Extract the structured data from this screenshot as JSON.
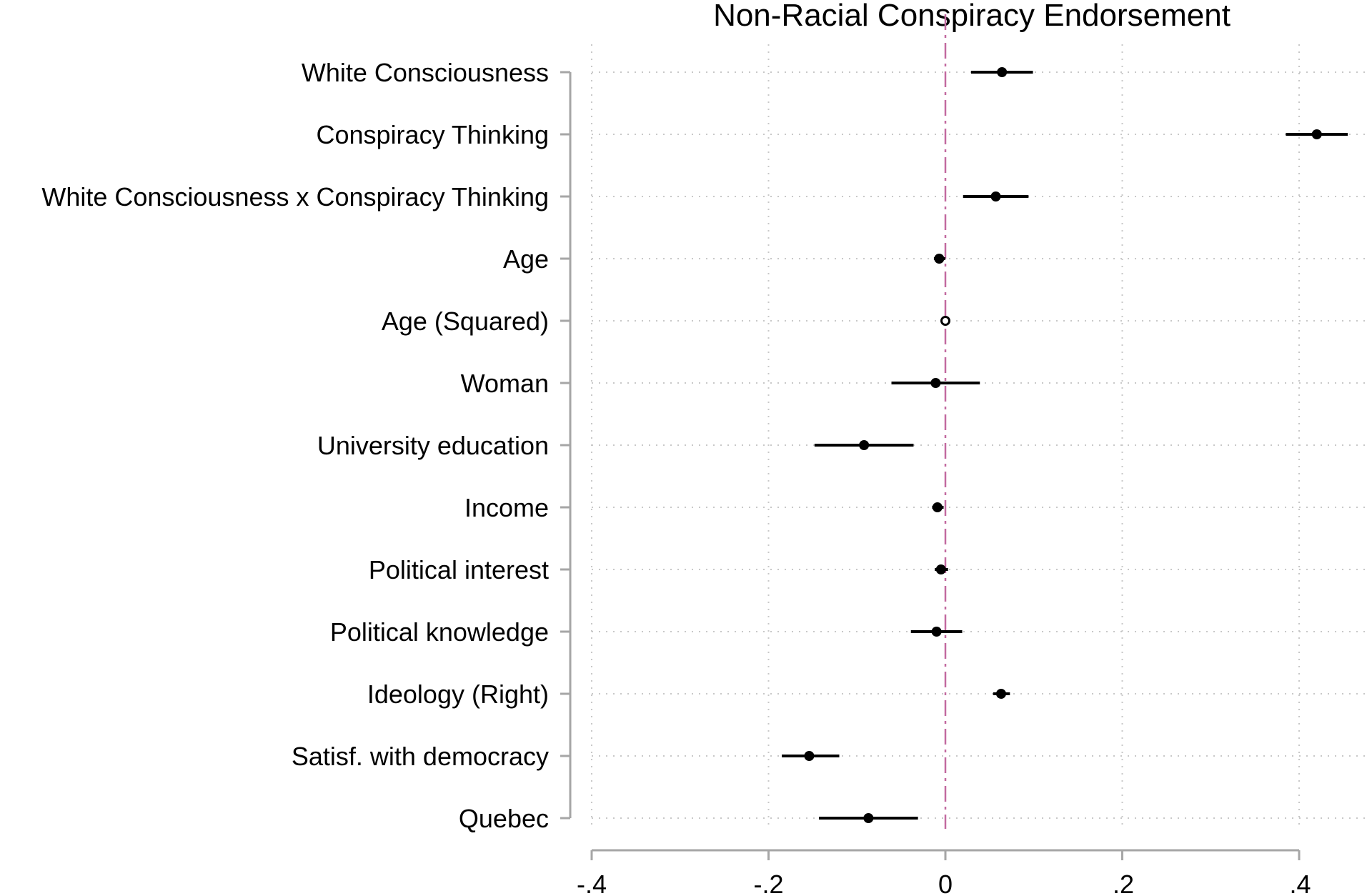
{
  "chart_data": {
    "type": "coefficient-plot",
    "title": "Non-Racial Conspiracy Endorsement",
    "xlim": [
      -0.4,
      0.45
    ],
    "xticks": [
      {
        "value": -0.4,
        "label": "-.4"
      },
      {
        "value": -0.2,
        "label": "-.2"
      },
      {
        "value": 0,
        "label": "0"
      },
      {
        "value": 0.2,
        "label": " .2"
      },
      {
        "value": 0.4,
        "label": " .4"
      }
    ],
    "reference_line": 0,
    "grid": true,
    "series": [
      {
        "label": "White Consciousness",
        "estimate": 0.064,
        "ci": [
          0.029,
          0.099
        ],
        "hollow": false
      },
      {
        "label": "Conspiracy Thinking",
        "estimate": 0.42,
        "ci": [
          0.385,
          0.455
        ],
        "hollow": false
      },
      {
        "label": "White Consciousness x Conspiracy Thinking",
        "estimate": 0.057,
        "ci": [
          0.02,
          0.094
        ],
        "hollow": false
      },
      {
        "label": "Age",
        "estimate": -0.007,
        "ci": [
          -0.013,
          0.0
        ],
        "hollow": false
      },
      {
        "label": "Age (Squared)",
        "estimate": 0.0,
        "ci": [
          0.0,
          0.0
        ],
        "hollow": true
      },
      {
        "label": "Woman",
        "estimate": -0.011,
        "ci": [
          -0.061,
          0.039
        ],
        "hollow": false
      },
      {
        "label": "University education",
        "estimate": -0.092,
        "ci": [
          -0.148,
          -0.036
        ],
        "hollow": false
      },
      {
        "label": "Income",
        "estimate": -0.009,
        "ci": [
          -0.015,
          -0.002
        ],
        "hollow": false
      },
      {
        "label": "Political interest",
        "estimate": -0.005,
        "ci": [
          -0.012,
          0.003
        ],
        "hollow": false
      },
      {
        "label": "Political knowledge",
        "estimate": -0.01,
        "ci": [
          -0.039,
          0.019
        ],
        "hollow": false
      },
      {
        "label": "Ideology (Right)",
        "estimate": 0.063,
        "ci": [
          0.054,
          0.073
        ],
        "hollow": false
      },
      {
        "label": "Satisf. with democracy",
        "estimate": -0.154,
        "ci": [
          -0.185,
          -0.12
        ],
        "hollow": false
      },
      {
        "label": "Quebec",
        "estimate": -0.087,
        "ci": [
          -0.143,
          -0.031
        ],
        "hollow": false
      }
    ],
    "colors": {
      "marker": "#000000",
      "reference_line": "#c26aa0",
      "axis": "#a6a6a6",
      "grid": "#c8c8c8"
    }
  }
}
